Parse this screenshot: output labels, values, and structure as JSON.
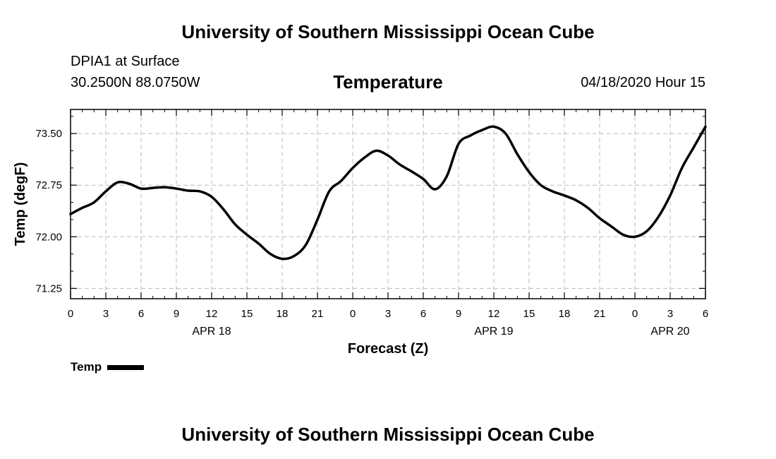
{
  "header": {
    "title": "University of Southern Mississippi Ocean Cube",
    "station": "DPIA1 at Surface",
    "coords": "30.2500N 88.0750W",
    "datetime": "04/18/2020 Hour 15"
  },
  "footer": {
    "title": "University of Southern Mississippi Ocean Cube"
  },
  "chart_data": {
    "type": "line",
    "title": "Temperature",
    "xlabel": "Forecast (Z)",
    "ylabel": "Temp (degF)",
    "xlim": [
      0,
      54
    ],
    "ylim": [
      71.1,
      73.85
    ],
    "x_ticks": [
      0,
      3,
      6,
      9,
      12,
      15,
      18,
      21,
      24,
      27,
      30,
      33,
      36,
      39,
      42,
      45,
      48,
      51,
      54
    ],
    "x_tick_labels": [
      "0",
      "3",
      "6",
      "9",
      "12",
      "15",
      "18",
      "21",
      "0",
      "3",
      "6",
      "9",
      "12",
      "15",
      "18",
      "21",
      "0",
      "3",
      "6"
    ],
    "date_labels": [
      {
        "x": 12,
        "label": "APR 18"
      },
      {
        "x": 36,
        "label": "APR 19"
      },
      {
        "x": 51,
        "label": "APR 20"
      }
    ],
    "y_ticks": [
      71.25,
      72.0,
      72.75,
      73.5
    ],
    "y_tick_labels": [
      "71.25",
      "72.00",
      "72.75",
      "73.50"
    ],
    "grid": true,
    "series": [
      {
        "name": "Temp",
        "color": "#000000",
        "x": [
          0,
          1,
          2,
          3,
          4,
          5,
          6,
          7,
          8,
          9,
          10,
          11,
          12,
          13,
          14,
          15,
          16,
          17,
          18,
          19,
          20,
          21,
          22,
          23,
          24,
          25,
          26,
          27,
          28,
          29,
          30,
          31,
          32,
          33,
          34,
          35,
          36,
          37,
          38,
          39,
          40,
          41,
          42,
          43,
          44,
          45,
          46,
          47,
          48,
          49,
          50,
          51,
          52,
          53,
          54
        ],
        "values": [
          72.33,
          72.42,
          72.5,
          72.66,
          72.79,
          72.77,
          72.7,
          72.71,
          72.72,
          72.7,
          72.67,
          72.66,
          72.58,
          72.4,
          72.18,
          72.03,
          71.9,
          71.75,
          71.68,
          71.72,
          71.88,
          72.25,
          72.66,
          72.81,
          73.0,
          73.15,
          73.25,
          73.18,
          73.05,
          72.95,
          72.84,
          72.69,
          72.88,
          73.35,
          73.47,
          73.55,
          73.6,
          73.5,
          73.2,
          72.94,
          72.75,
          72.66,
          72.6,
          72.53,
          72.42,
          72.27,
          72.15,
          72.03,
          72.0,
          72.08,
          72.29,
          72.6,
          73.0,
          73.3,
          73.6
        ]
      }
    ],
    "legend": {
      "label": "Temp",
      "position": "bottom-left"
    }
  }
}
